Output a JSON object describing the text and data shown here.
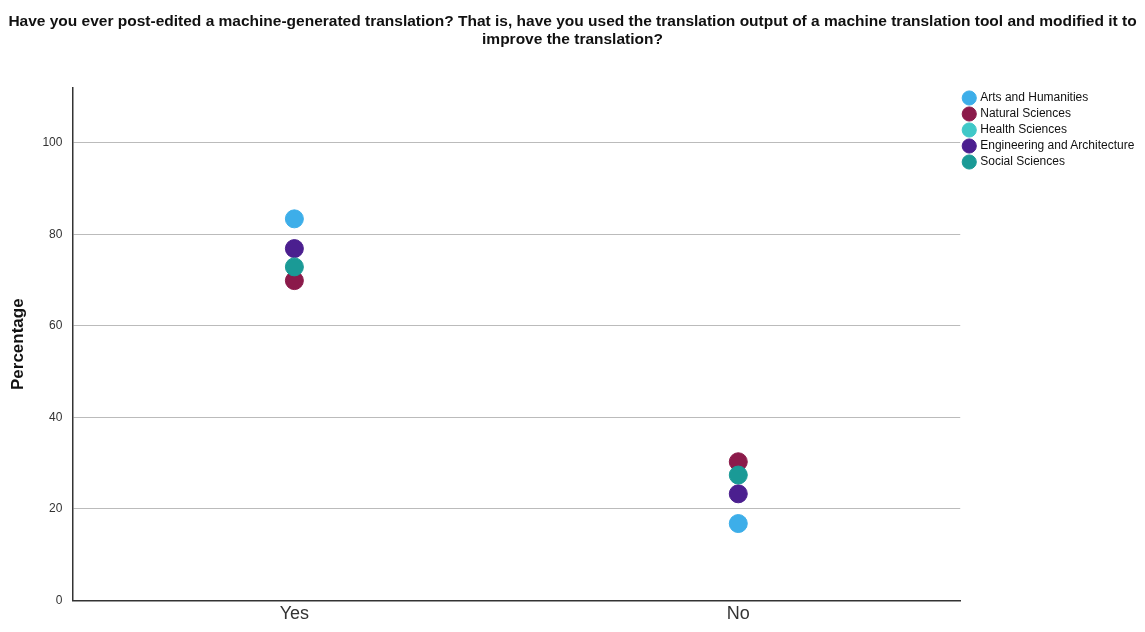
{
  "chart_data": {
    "type": "scatter",
    "title": "Have you ever post-edited a machine-generated translation? That is, have  you used the translation output of a machine translation tool and modified it to improve the translation?",
    "ylabel": "Percentage",
    "categories": [
      "Yes",
      "No"
    ],
    "series": [
      {
        "name": "Arts and Humanities",
        "color": "#3daee9",
        "values": [
          83.4,
          16.8
        ]
      },
      {
        "name": "Natural Sciences",
        "color": "#8b1a4a",
        "values": [
          69.9,
          30.3
        ]
      },
      {
        "name": "Health Sciences",
        "color": "#40c8c8",
        "values": [
          null,
          null
        ]
      },
      {
        "name": "Engineering and Architecture",
        "color": "#4b1f8f",
        "values": [
          76.9,
          23.3
        ]
      },
      {
        "name": "Social Sciences",
        "color": "#1a9a96",
        "values": [
          72.9,
          27.4
        ]
      }
    ],
    "ylim": [
      0,
      112
    ],
    "yticks": [
      0,
      20,
      40,
      60,
      80,
      100
    ],
    "grid": "y",
    "legend": "top right",
    "marker": "circle"
  }
}
